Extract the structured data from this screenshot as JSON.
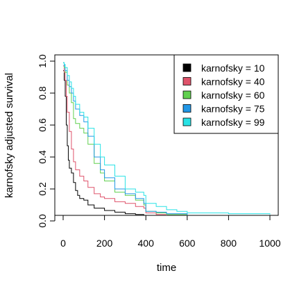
{
  "chart_data": {
    "type": "line",
    "title": "",
    "xlabel": "time",
    "ylabel": "karnofsky adjusted survival",
    "xlim": [
      0,
      1000
    ],
    "ylim": [
      0,
      1
    ],
    "xticks": [
      0,
      200,
      400,
      600,
      800,
      1000
    ],
    "yticks": [
      0.0,
      0.2,
      0.4,
      0.6,
      0.8,
      1.0
    ],
    "ytick_labels": [
      "0.0",
      "0.2",
      "0.4",
      "0.6",
      "0.8",
      "1.0"
    ],
    "grid": false,
    "legend_position": "top-right",
    "series": [
      {
        "name": "karnofsky = 10",
        "color": "#000000",
        "points": [
          [
            0,
            0.94
          ],
          [
            5,
            0.88
          ],
          [
            10,
            0.78
          ],
          [
            15,
            0.6
          ],
          [
            20,
            0.47
          ],
          [
            25,
            0.38
          ],
          [
            30,
            0.33
          ],
          [
            40,
            0.3
          ],
          [
            50,
            0.24
          ],
          [
            60,
            0.19
          ],
          [
            70,
            0.16
          ],
          [
            80,
            0.14
          ],
          [
            100,
            0.13
          ],
          [
            120,
            0.1
          ],
          [
            150,
            0.08
          ],
          [
            200,
            0.065
          ],
          [
            250,
            0.055
          ],
          [
            300,
            0.045
          ],
          [
            350,
            0.04
          ],
          [
            390,
            0.035
          ],
          [
            400,
            0.02
          ],
          [
            500,
            0.015
          ],
          [
            600,
            0.012
          ],
          [
            800,
            0.01
          ],
          [
            1000,
            0.01
          ]
        ]
      },
      {
        "name": "karnofsky = 40",
        "color": "#DF536B",
        "points": [
          [
            0,
            0.97
          ],
          [
            5,
            0.93
          ],
          [
            10,
            0.88
          ],
          [
            15,
            0.78
          ],
          [
            20,
            0.68
          ],
          [
            30,
            0.56
          ],
          [
            40,
            0.45
          ],
          [
            50,
            0.37
          ],
          [
            60,
            0.32
          ],
          [
            80,
            0.28
          ],
          [
            100,
            0.25
          ],
          [
            120,
            0.21
          ],
          [
            150,
            0.17
          ],
          [
            180,
            0.15
          ],
          [
            200,
            0.14
          ],
          [
            250,
            0.12
          ],
          [
            300,
            0.11
          ],
          [
            350,
            0.09
          ],
          [
            390,
            0.08
          ],
          [
            400,
            0.05
          ],
          [
            450,
            0.04
          ],
          [
            500,
            0.03
          ],
          [
            600,
            0.02
          ],
          [
            800,
            0.02
          ],
          [
            1000,
            0.015
          ]
        ]
      },
      {
        "name": "karnofsky = 60",
        "color": "#61D04F",
        "points": [
          [
            0,
            0.99
          ],
          [
            5,
            0.96
          ],
          [
            10,
            0.93
          ],
          [
            20,
            0.85
          ],
          [
            30,
            0.8
          ],
          [
            40,
            0.74
          ],
          [
            50,
            0.64
          ],
          [
            60,
            0.61
          ],
          [
            80,
            0.58
          ],
          [
            100,
            0.55
          ],
          [
            120,
            0.48
          ],
          [
            150,
            0.36
          ],
          [
            180,
            0.3
          ],
          [
            200,
            0.25
          ],
          [
            250,
            0.18
          ],
          [
            300,
            0.16
          ],
          [
            350,
            0.13
          ],
          [
            390,
            0.1
          ],
          [
            400,
            0.06
          ],
          [
            450,
            0.05
          ],
          [
            500,
            0.04
          ],
          [
            600,
            0.02
          ],
          [
            800,
            0.02
          ],
          [
            1000,
            0.015
          ]
        ]
      },
      {
        "name": "karnofsky = 75",
        "color": "#2297E6",
        "points": [
          [
            0,
            0.99
          ],
          [
            5,
            0.97
          ],
          [
            10,
            0.94
          ],
          [
            20,
            0.88
          ],
          [
            30,
            0.84
          ],
          [
            40,
            0.8
          ],
          [
            50,
            0.75
          ],
          [
            60,
            0.7
          ],
          [
            80,
            0.66
          ],
          [
            100,
            0.62
          ],
          [
            120,
            0.53
          ],
          [
            150,
            0.4
          ],
          [
            180,
            0.32
          ],
          [
            200,
            0.27
          ],
          [
            250,
            0.2
          ],
          [
            300,
            0.17
          ],
          [
            350,
            0.14
          ],
          [
            390,
            0.11
          ],
          [
            400,
            0.06
          ],
          [
            450,
            0.055
          ],
          [
            500,
            0.045
          ],
          [
            600,
            0.025
          ],
          [
            800,
            0.02
          ],
          [
            1000,
            0.02
          ]
        ]
      },
      {
        "name": "karnofsky = 99",
        "color": "#28E2E5",
        "points": [
          [
            0,
            0.99
          ],
          [
            5,
            0.98
          ],
          [
            10,
            0.96
          ],
          [
            20,
            0.91
          ],
          [
            30,
            0.87
          ],
          [
            40,
            0.83
          ],
          [
            50,
            0.78
          ],
          [
            60,
            0.73
          ],
          [
            80,
            0.68
          ],
          [
            100,
            0.65
          ],
          [
            120,
            0.58
          ],
          [
            150,
            0.48
          ],
          [
            180,
            0.4
          ],
          [
            200,
            0.35
          ],
          [
            250,
            0.28
          ],
          [
            300,
            0.2
          ],
          [
            350,
            0.18
          ],
          [
            390,
            0.16
          ],
          [
            400,
            0.11
          ],
          [
            450,
            0.09
          ],
          [
            500,
            0.07
          ],
          [
            550,
            0.06
          ],
          [
            600,
            0.05
          ],
          [
            800,
            0.045
          ],
          [
            1000,
            0.04
          ]
        ]
      }
    ]
  }
}
